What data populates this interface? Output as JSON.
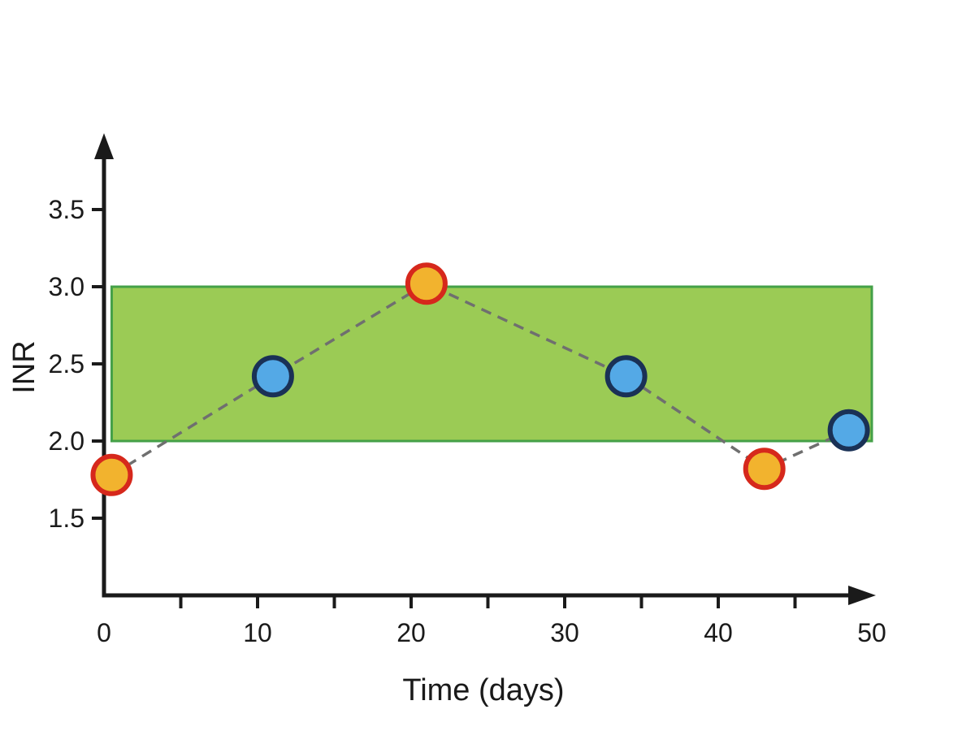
{
  "figure": {
    "background": "#ffffff"
  },
  "chart_data": {
    "type": "scatter",
    "title": "",
    "xlabel": "Time (days)",
    "ylabel": "INR",
    "xlim": [
      0,
      50
    ],
    "ylim": [
      1.0,
      4.0
    ],
    "x_major_ticks": [
      0,
      10,
      20,
      30,
      40,
      50
    ],
    "x_minor_ticks": [
      5,
      15,
      25,
      35,
      45
    ],
    "y_ticks": [
      1.5,
      2.0,
      2.5,
      3.0,
      3.5
    ],
    "grid": false,
    "legend": "none",
    "therapeutic_band": {
      "y_from": 2.0,
      "y_to": 3.0,
      "x_from": 0.5,
      "x_to": 50,
      "fill": "#9bcb55",
      "border": "#44a048"
    },
    "line": {
      "color": "#6f6f6f",
      "style": "dashed"
    },
    "points": [
      {
        "day": 0.5,
        "inr": 1.78,
        "variant": "amber"
      },
      {
        "day": 11,
        "inr": 2.42,
        "variant": "blue"
      },
      {
        "day": 21,
        "inr": 3.02,
        "variant": "amber"
      },
      {
        "day": 34,
        "inr": 2.42,
        "variant": "blue"
      },
      {
        "day": 43,
        "inr": 1.82,
        "variant": "amber"
      },
      {
        "day": 48.5,
        "inr": 2.07,
        "variant": "blue"
      }
    ],
    "marker_styles": {
      "amber": {
        "fill": "#f2b32e",
        "stroke": "#d6281c"
      },
      "blue": {
        "fill": "#54a9e6",
        "stroke": "#1a3156"
      }
    },
    "axis_color": "#1a1a1a"
  }
}
